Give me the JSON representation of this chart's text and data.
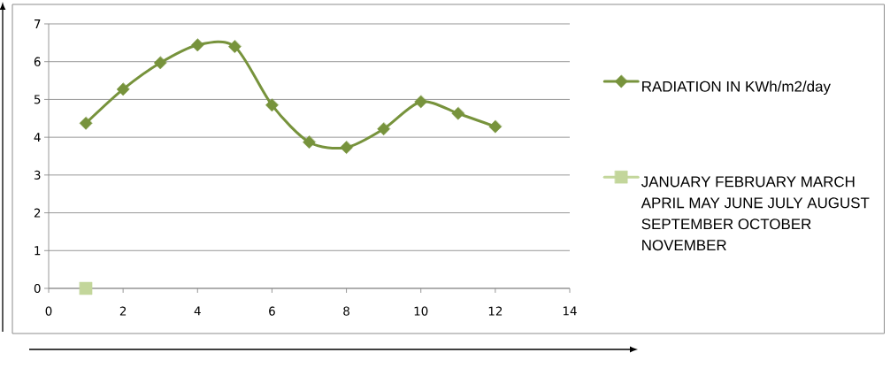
{
  "chart_data": {
    "type": "line",
    "x": [
      1,
      2,
      3,
      4,
      5,
      6,
      7,
      8,
      9,
      10,
      11,
      12
    ],
    "series": [
      {
        "name": "RADIATION IN KWh/m2/day",
        "color": "#77933c",
        "marker": "diamond",
        "values": [
          4.37,
          5.27,
          5.97,
          6.44,
          6.4,
          4.85,
          3.87,
          3.73,
          4.22,
          4.94,
          4.63,
          4.28
        ]
      },
      {
        "name": "JANUARY FEBRUARY MARCH APRIL MAY JUNE JULY AUGUST SEPTEMBER OCTOBER NOVEMBER",
        "color": "#c3d69b",
        "marker": "square",
        "x": [
          1
        ],
        "values": [
          0
        ]
      }
    ],
    "xlim": [
      0,
      14
    ],
    "xticks": [
      0,
      2,
      4,
      6,
      8,
      10,
      12,
      14
    ],
    "ylim": [
      0,
      7
    ],
    "yticks": [
      0,
      1,
      2,
      3,
      4,
      5,
      6,
      7
    ],
    "grid": "y",
    "legend": "right"
  }
}
